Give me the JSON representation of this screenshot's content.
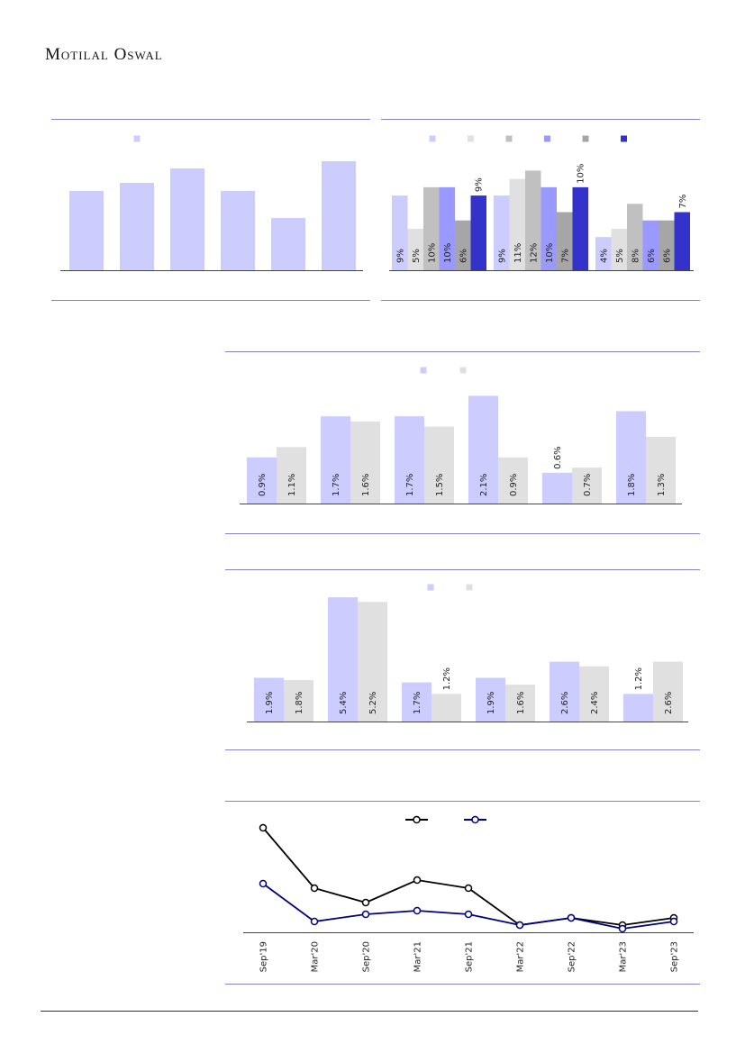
{
  "header": {
    "brand": "Motilal Oswal"
  },
  "chart_data": [
    {
      "type": "bar",
      "categories": [
        null,
        null,
        null,
        null,
        null,
        null
      ],
      "series": [
        {
          "color": "#ccccff",
          "values": [
            88,
            97,
            113,
            88,
            58,
            121
          ]
        }
      ],
      "ylim": [
        0,
        130
      ],
      "legend": true
    },
    {
      "type": "bar",
      "categories": [
        null,
        null,
        null
      ],
      "series": [
        {
          "color": "#ccccff",
          "values": [
            9,
            9,
            4
          ],
          "value_labels": [
            "9%",
            "9%",
            "4%"
          ]
        },
        {
          "color": "#e0e0e0",
          "values": [
            5,
            11,
            5
          ],
          "value_labels": [
            "5%",
            "11%",
            "5%"
          ]
        },
        {
          "color": "#c0c0c0",
          "values": [
            10,
            12,
            8
          ],
          "value_labels": [
            "10%",
            "12%",
            "8%"
          ]
        },
        {
          "color": "#9999ff",
          "values": [
            10,
            10,
            6
          ],
          "value_labels": [
            "10%",
            "10%",
            "6%"
          ]
        },
        {
          "color": "#a6a6a6",
          "values": [
            6,
            7,
            6
          ],
          "value_labels": [
            "6%",
            "7%",
            "6%"
          ]
        },
        {
          "color": "#3333cc",
          "values": [
            9,
            10,
            7
          ],
          "value_labels": [
            "9%",
            "10%",
            "7%"
          ]
        }
      ],
      "ylim": [
        0,
        14
      ],
      "legend": true
    },
    {
      "type": "bar",
      "categories": [
        null,
        null,
        null,
        null,
        null,
        null
      ],
      "series": [
        {
          "color": "#ccccff",
          "values": [
            0.9,
            1.7,
            1.7,
            2.1,
            0.6,
            1.8
          ],
          "value_labels": [
            "0.9%",
            "1.7%",
            "1.7%",
            "2.1%",
            "0.6%",
            "1.8%"
          ]
        },
        {
          "color": "#e0e0e0",
          "values": [
            1.1,
            1.6,
            1.5,
            0.9,
            0.7,
            1.3
          ],
          "value_labels": [
            "1.1%",
            "1.6%",
            "1.5%",
            "0.9%",
            "0.7%",
            "1.3%"
          ]
        }
      ],
      "ylim": [
        0,
        2.3
      ],
      "legend": true
    },
    {
      "type": "bar",
      "categories": [
        null,
        null,
        null,
        null,
        null,
        null
      ],
      "series": [
        {
          "color": "#ccccff",
          "values": [
            1.9,
            5.4,
            1.7,
            1.9,
            2.6,
            1.2
          ],
          "value_labels": [
            "1.9%",
            "5.4%",
            "1.7%",
            "1.9%",
            "2.6%",
            "1.2%"
          ]
        },
        {
          "color": "#e0e0e0",
          "values": [
            1.8,
            5.2,
            1.2,
            1.6,
            2.4,
            2.6
          ],
          "value_labels": [
            "1.8%",
            "5.2%",
            "1.2%",
            "1.6%",
            "2.4%",
            "2.6%"
          ]
        }
      ],
      "ylim": [
        0,
        5.6
      ],
      "legend": true
    },
    {
      "type": "line",
      "categories": [
        "Sep'19",
        "Mar'20",
        "Sep'20",
        "Mar'21",
        "Sep'21",
        "Mar'22",
        "Sep'22",
        "Mar'23",
        "Sep'23"
      ],
      "series": [
        {
          "color": "#000000",
          "values": [
            116,
            49,
            33,
            58,
            49,
            8,
            16,
            8,
            16
          ]
        },
        {
          "color": "#000080",
          "values": [
            54,
            12,
            20,
            24,
            20,
            8,
            16,
            4,
            12
          ]
        }
      ],
      "ylim": [
        0,
        125
      ],
      "legend": true
    }
  ]
}
